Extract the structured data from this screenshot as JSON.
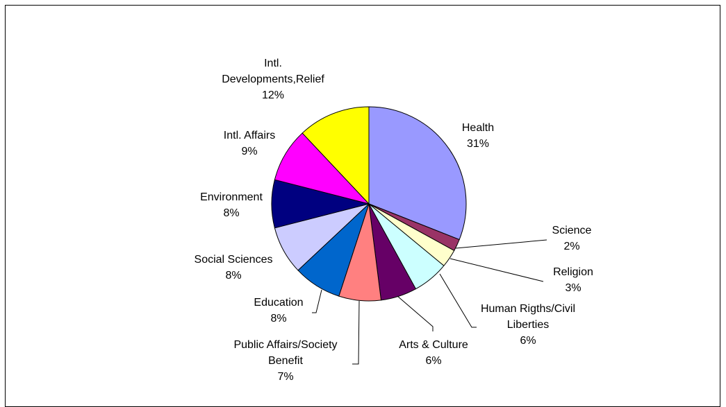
{
  "chart_data": {
    "type": "pie",
    "title": "",
    "start_angle_deg": 0,
    "direction": "clockwise",
    "slices": [
      {
        "name": "Health",
        "value": 31,
        "label": "31%",
        "color": "#9999ff"
      },
      {
        "name": "Science",
        "value": 2,
        "label": "2%",
        "color": "#993366"
      },
      {
        "name": "Religion",
        "value": 3,
        "label": "3%",
        "color": "#ffffcc"
      },
      {
        "name": "Human Rigths/Civil Liberties",
        "value": 6,
        "label": "6%",
        "color": "#ccffff"
      },
      {
        "name": "Arts & Culture",
        "value": 6,
        "label": "6%",
        "color": "#660066"
      },
      {
        "name": "Public Affairs/Society Benefit",
        "value": 7,
        "label": "7%",
        "color": "#ff8080"
      },
      {
        "name": "Education",
        "value": 8,
        "label": "8%",
        "color": "#0066cc"
      },
      {
        "name": "Social Sciences",
        "value": 8,
        "label": "8%",
        "color": "#ccccff"
      },
      {
        "name": "Environment",
        "value": 8,
        "label": "8%",
        "color": "#000080"
      },
      {
        "name": "Intl. Affairs",
        "value": 9,
        "label": "9%",
        "color": "#ff00ff"
      },
      {
        "name": "Intl. Developments,Relief",
        "value": 12,
        "label": "12%",
        "color": "#ffff00"
      }
    ]
  }
}
